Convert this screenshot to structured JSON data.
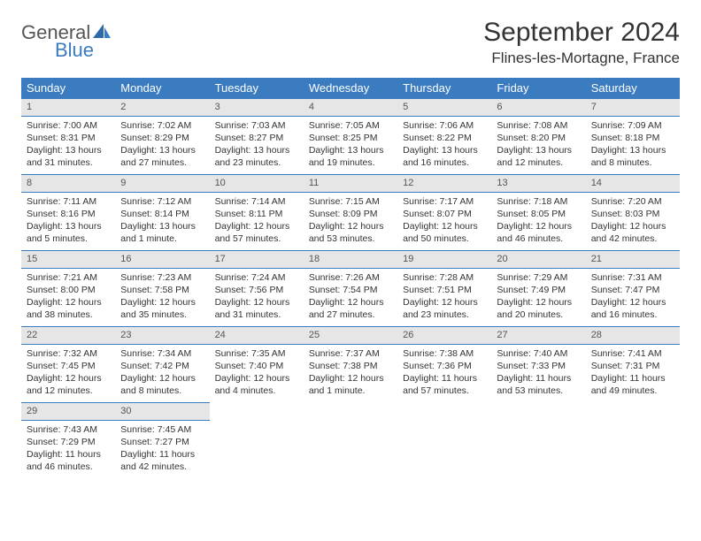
{
  "logo": {
    "general": "General",
    "blue": "Blue"
  },
  "title": "September 2024",
  "location": "Flines-les-Mortagne, France",
  "colors": {
    "header_bg": "#3b7bbf",
    "header_text": "#ffffff",
    "daynum_bg": "#e6e6e6",
    "row_rule": "#3b7bbf",
    "body_text": "#333333",
    "logo_gray": "#555555",
    "logo_blue": "#3b7bbf",
    "page_bg": "#ffffff"
  },
  "typography": {
    "title_fontsize": 30,
    "location_fontsize": 17,
    "weekday_fontsize": 13,
    "cell_fontsize": 10.5,
    "daynum_fontsize": 11
  },
  "weekdays": [
    "Sunday",
    "Monday",
    "Tuesday",
    "Wednesday",
    "Thursday",
    "Friday",
    "Saturday"
  ],
  "weeks": [
    [
      {
        "n": "1",
        "sr": "Sunrise: 7:00 AM",
        "ss": "Sunset: 8:31 PM",
        "dl": "Daylight: 13 hours and 31 minutes."
      },
      {
        "n": "2",
        "sr": "Sunrise: 7:02 AM",
        "ss": "Sunset: 8:29 PM",
        "dl": "Daylight: 13 hours and 27 minutes."
      },
      {
        "n": "3",
        "sr": "Sunrise: 7:03 AM",
        "ss": "Sunset: 8:27 PM",
        "dl": "Daylight: 13 hours and 23 minutes."
      },
      {
        "n": "4",
        "sr": "Sunrise: 7:05 AM",
        "ss": "Sunset: 8:25 PM",
        "dl": "Daylight: 13 hours and 19 minutes."
      },
      {
        "n": "5",
        "sr": "Sunrise: 7:06 AM",
        "ss": "Sunset: 8:22 PM",
        "dl": "Daylight: 13 hours and 16 minutes."
      },
      {
        "n": "6",
        "sr": "Sunrise: 7:08 AM",
        "ss": "Sunset: 8:20 PM",
        "dl": "Daylight: 13 hours and 12 minutes."
      },
      {
        "n": "7",
        "sr": "Sunrise: 7:09 AM",
        "ss": "Sunset: 8:18 PM",
        "dl": "Daylight: 13 hours and 8 minutes."
      }
    ],
    [
      {
        "n": "8",
        "sr": "Sunrise: 7:11 AM",
        "ss": "Sunset: 8:16 PM",
        "dl": "Daylight: 13 hours and 5 minutes."
      },
      {
        "n": "9",
        "sr": "Sunrise: 7:12 AM",
        "ss": "Sunset: 8:14 PM",
        "dl": "Daylight: 13 hours and 1 minute."
      },
      {
        "n": "10",
        "sr": "Sunrise: 7:14 AM",
        "ss": "Sunset: 8:11 PM",
        "dl": "Daylight: 12 hours and 57 minutes."
      },
      {
        "n": "11",
        "sr": "Sunrise: 7:15 AM",
        "ss": "Sunset: 8:09 PM",
        "dl": "Daylight: 12 hours and 53 minutes."
      },
      {
        "n": "12",
        "sr": "Sunrise: 7:17 AM",
        "ss": "Sunset: 8:07 PM",
        "dl": "Daylight: 12 hours and 50 minutes."
      },
      {
        "n": "13",
        "sr": "Sunrise: 7:18 AM",
        "ss": "Sunset: 8:05 PM",
        "dl": "Daylight: 12 hours and 46 minutes."
      },
      {
        "n": "14",
        "sr": "Sunrise: 7:20 AM",
        "ss": "Sunset: 8:03 PM",
        "dl": "Daylight: 12 hours and 42 minutes."
      }
    ],
    [
      {
        "n": "15",
        "sr": "Sunrise: 7:21 AM",
        "ss": "Sunset: 8:00 PM",
        "dl": "Daylight: 12 hours and 38 minutes."
      },
      {
        "n": "16",
        "sr": "Sunrise: 7:23 AM",
        "ss": "Sunset: 7:58 PM",
        "dl": "Daylight: 12 hours and 35 minutes."
      },
      {
        "n": "17",
        "sr": "Sunrise: 7:24 AM",
        "ss": "Sunset: 7:56 PM",
        "dl": "Daylight: 12 hours and 31 minutes."
      },
      {
        "n": "18",
        "sr": "Sunrise: 7:26 AM",
        "ss": "Sunset: 7:54 PM",
        "dl": "Daylight: 12 hours and 27 minutes."
      },
      {
        "n": "19",
        "sr": "Sunrise: 7:28 AM",
        "ss": "Sunset: 7:51 PM",
        "dl": "Daylight: 12 hours and 23 minutes."
      },
      {
        "n": "20",
        "sr": "Sunrise: 7:29 AM",
        "ss": "Sunset: 7:49 PM",
        "dl": "Daylight: 12 hours and 20 minutes."
      },
      {
        "n": "21",
        "sr": "Sunrise: 7:31 AM",
        "ss": "Sunset: 7:47 PM",
        "dl": "Daylight: 12 hours and 16 minutes."
      }
    ],
    [
      {
        "n": "22",
        "sr": "Sunrise: 7:32 AM",
        "ss": "Sunset: 7:45 PM",
        "dl": "Daylight: 12 hours and 12 minutes."
      },
      {
        "n": "23",
        "sr": "Sunrise: 7:34 AM",
        "ss": "Sunset: 7:42 PM",
        "dl": "Daylight: 12 hours and 8 minutes."
      },
      {
        "n": "24",
        "sr": "Sunrise: 7:35 AM",
        "ss": "Sunset: 7:40 PM",
        "dl": "Daylight: 12 hours and 4 minutes."
      },
      {
        "n": "25",
        "sr": "Sunrise: 7:37 AM",
        "ss": "Sunset: 7:38 PM",
        "dl": "Daylight: 12 hours and 1 minute."
      },
      {
        "n": "26",
        "sr": "Sunrise: 7:38 AM",
        "ss": "Sunset: 7:36 PM",
        "dl": "Daylight: 11 hours and 57 minutes."
      },
      {
        "n": "27",
        "sr": "Sunrise: 7:40 AM",
        "ss": "Sunset: 7:33 PM",
        "dl": "Daylight: 11 hours and 53 minutes."
      },
      {
        "n": "28",
        "sr": "Sunrise: 7:41 AM",
        "ss": "Sunset: 7:31 PM",
        "dl": "Daylight: 11 hours and 49 minutes."
      }
    ],
    [
      {
        "n": "29",
        "sr": "Sunrise: 7:43 AM",
        "ss": "Sunset: 7:29 PM",
        "dl": "Daylight: 11 hours and 46 minutes."
      },
      {
        "n": "30",
        "sr": "Sunrise: 7:45 AM",
        "ss": "Sunset: 7:27 PM",
        "dl": "Daylight: 11 hours and 42 minutes."
      },
      null,
      null,
      null,
      null,
      null
    ]
  ]
}
